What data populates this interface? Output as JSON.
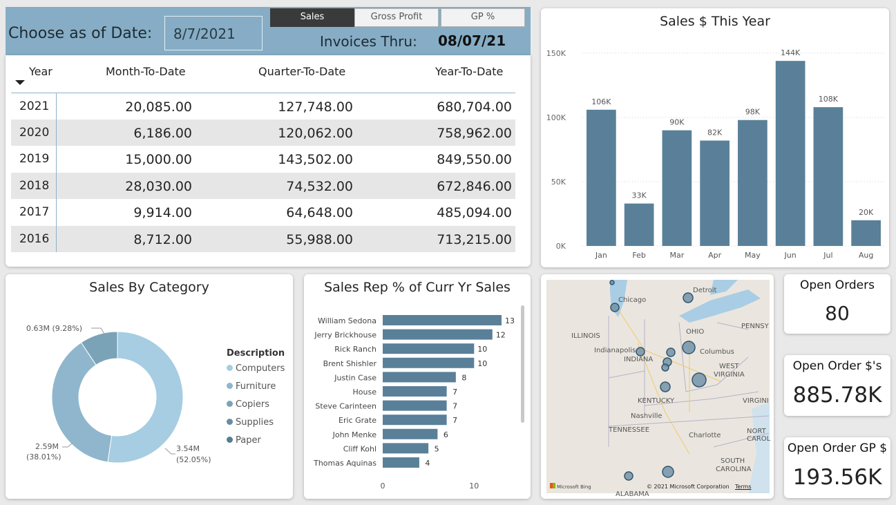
{
  "header": {
    "choose_label": "Choose as of Date:",
    "date_value": "8/7/2021",
    "invoices_label": "Invoices Thru:",
    "invoices_value": "08/07/21",
    "tabs": [
      "Sales",
      "Gross Profit",
      "GP %"
    ]
  },
  "matrix": {
    "headers": [
      "Year",
      "Month-To-Date",
      "Quarter-To-Date",
      "Year-To-Date"
    ],
    "rows": [
      [
        "2021",
        "20,085.00",
        "127,748.00",
        "680,704.00"
      ],
      [
        "2020",
        "6,186.00",
        "120,062.00",
        "758,962.00"
      ],
      [
        "2019",
        "15,000.00",
        "143,502.00",
        "849,550.00"
      ],
      [
        "2018",
        "28,030.00",
        "74,532.00",
        "672,846.00"
      ],
      [
        "2017",
        "9,914.00",
        "64,648.00",
        "485,094.00"
      ],
      [
        "2016",
        "8,712.00",
        "55,988.00",
        "713,215.00"
      ]
    ]
  },
  "sales_chart": {
    "title": "Sales $ This Year"
  },
  "category": {
    "title": "Sales By Category",
    "legend_title": "Description",
    "legend": [
      "Computers",
      "Furniture",
      "Copiers",
      "Supplies",
      "Paper"
    ],
    "labels": {
      "a": "3.54M",
      "a_pct": "(52.05%)",
      "b": "2.59M",
      "b_pct": "(38.01%)",
      "c": "0.63M (9.28%)"
    }
  },
  "rep": {
    "title": "Sales Rep % of Curr Yr Sales"
  },
  "map": {
    "places": [
      "Chicago",
      "Detroit",
      "ILLINOIS",
      "OHIO",
      "Indianapolis",
      "INDIANA",
      "Columbus",
      "WEST",
      "VIRGINIA",
      "KENTUCKY",
      "Nashville",
      "TENNESSEE",
      "Charlotte",
      "SOUTH",
      "CAROLINA",
      "PENNSY",
      "VIRGINI",
      "NORT",
      "CAROL",
      "ALABAMA"
    ],
    "copyright": "© 2021 Microsoft Corporation",
    "terms": "Terms",
    "brand": "Microsoft Bing"
  },
  "kpis": [
    {
      "title": "Open Orders",
      "value": "80"
    },
    {
      "title": "Open Order $'s",
      "value": "885.78K"
    },
    {
      "title": "Open Order GP $",
      "value": "193.56K"
    }
  ],
  "colors": {
    "bar": "#5a8099",
    "header": "#86adc5",
    "donut_a": "#a6cde2",
    "donut_b": "#8fb6cc",
    "donut_c": "#7aa3b8"
  },
  "chart_data": [
    {
      "type": "bar",
      "title": "Sales $ This Year",
      "categories": [
        "Jan",
        "Feb",
        "Mar",
        "Apr",
        "May",
        "Jun",
        "Jul",
        "Aug"
      ],
      "values": [
        106000,
        33000,
        90000,
        82000,
        98000,
        144000,
        108000,
        20000
      ],
      "data_labels": [
        "106K",
        "33K",
        "90K",
        "82K",
        "98K",
        "144K",
        "108K",
        "20K"
      ],
      "yticks": [
        "0K",
        "50K",
        "100K",
        "150K"
      ],
      "ylim": [
        0,
        150000
      ],
      "grid": true
    },
    {
      "type": "bar",
      "orientation": "horizontal",
      "title": "Sales Rep % of Curr Yr Sales",
      "categories": [
        "William Sedona",
        "Jerry Brickhouse",
        "Rick Ranch",
        "Brent Shishler",
        "Justin Case",
        "House",
        "Steve Carinteen",
        "Eric Grate",
        "John Menke",
        "Cliff Kohl",
        "Thomas Aquinas"
      ],
      "values": [
        13,
        12,
        10,
        10,
        8,
        7,
        7,
        7,
        6,
        5,
        4
      ],
      "xticks": [
        "0",
        "10"
      ],
      "xlim": [
        0,
        13.5
      ]
    },
    {
      "type": "pie",
      "title": "Sales By Category",
      "categories": [
        "Computers",
        "Furniture",
        "Copiers",
        "Supplies",
        "Paper"
      ],
      "values": [
        3.54,
        2.59,
        0.63,
        0,
        0
      ],
      "percent": [
        52.05,
        38.01,
        9.28,
        0,
        0
      ]
    }
  ]
}
